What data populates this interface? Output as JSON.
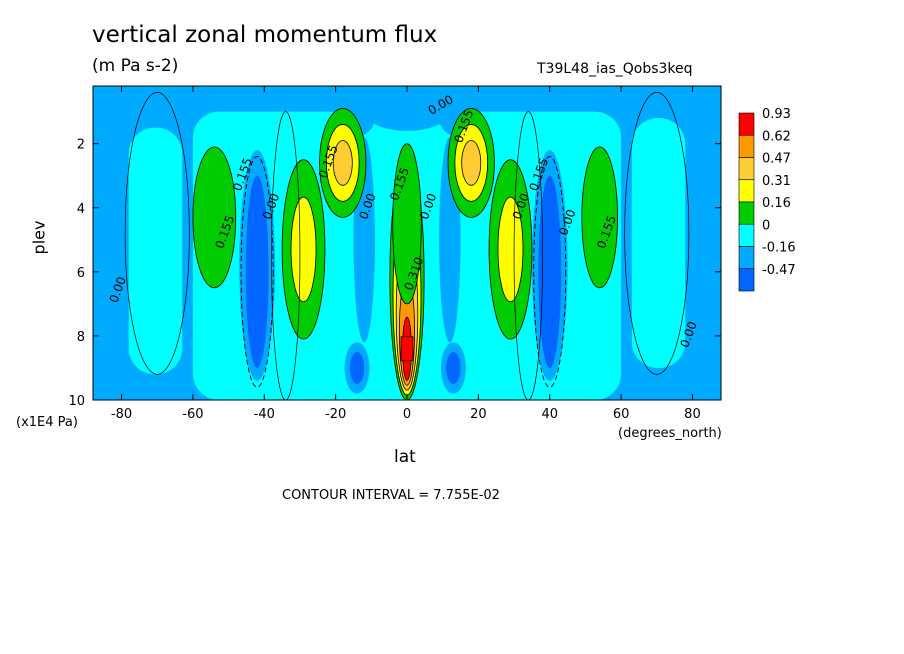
{
  "chart_data": {
    "type": "heatmap",
    "title": "vertical zonal momentum flux",
    "subtitle": "(m Pa s-2)",
    "run_label": "T39L48_ias_Qobs3keq",
    "xlabel": "lat",
    "x_units": "(degrees_north)",
    "ylabel": "plev",
    "y_units": "(x1E4 Pa)",
    "xlim": [
      -88,
      88
    ],
    "ylim": [
      10,
      0.2
    ],
    "x_ticks": [
      -80,
      -60,
      -40,
      -20,
      0,
      20,
      40,
      60,
      80
    ],
    "y_ticks": [
      2,
      4,
      6,
      8,
      10
    ],
    "contour_interval_text": "CONTOUR INTERVAL = 7.755E-02",
    "legend": {
      "position": "right",
      "levels": [
        "0.93",
        "0.62",
        "0.47",
        "0.31",
        "0.16",
        "0",
        "-0.16",
        "-0.47"
      ],
      "colors": [
        "#ff0000",
        "#ff9900",
        "#ffcc33",
        "#ffff00",
        "#00cc00",
        "#00ffff",
        "#00aaff",
        "#0066ff"
      ]
    },
    "contour_labels": [
      {
        "text": "0.00",
        "lat": 10,
        "plev": 0.9
      },
      {
        "text": "0.155",
        "lat": -21,
        "plev": 2.6
      },
      {
        "text": "0.155",
        "lat": 17,
        "plev": 1.5
      },
      {
        "text": "0.155",
        "lat": -45,
        "plev": 3.0
      },
      {
        "text": "0.155",
        "lat": 38,
        "plev": 3.0
      },
      {
        "text": "0.00",
        "lat": -37,
        "plev": 4.0
      },
      {
        "text": "0.00",
        "lat": 33,
        "plev": 4.0
      },
      {
        "text": "0.155",
        "lat": -50,
        "plev": 4.8
      },
      {
        "text": "0.00",
        "lat": -10,
        "plev": 4.0
      },
      {
        "text": "0.155",
        "lat": -1,
        "plev": 3.3
      },
      {
        "text": "0.00",
        "lat": 7,
        "plev": 4.0
      },
      {
        "text": "0.00",
        "lat": 46,
        "plev": 4.5
      },
      {
        "text": "0.155",
        "lat": 57,
        "plev": 4.8
      },
      {
        "text": "0.310",
        "lat": 3,
        "plev": 6.1
      },
      {
        "text": "0.00",
        "lat": -80,
        "plev": 6.6
      },
      {
        "text": "0.00",
        "lat": 80,
        "plev": 8.0
      }
    ],
    "features": [
      {
        "lat": 0,
        "plev": 8.4,
        "value": 0.93
      },
      {
        "lat": -18,
        "plev": 2.4,
        "value": 0.47
      },
      {
        "lat": 18,
        "plev": 2.4,
        "value": 0.47
      },
      {
        "lat": -28,
        "plev": 5.3,
        "value": 0.31
      },
      {
        "lat": 29,
        "plev": 5.3,
        "value": 0.31
      },
      {
        "lat": -54,
        "plev": 4.0,
        "value": 0.16
      },
      {
        "lat": 54,
        "plev": 4.0,
        "value": 0.16
      },
      {
        "lat": -42,
        "plev": 6.0,
        "value": -0.16
      },
      {
        "lat": 40,
        "plev": 6.0,
        "value": -0.16
      },
      {
        "lat": -14,
        "plev": 9.0,
        "value": -0.16
      },
      {
        "lat": 13,
        "plev": 9.0,
        "value": -0.16
      }
    ]
  }
}
